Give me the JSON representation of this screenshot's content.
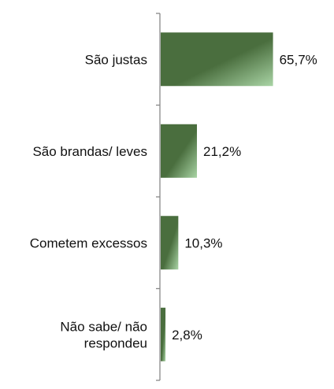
{
  "chart_data": {
    "type": "bar",
    "orientation": "horizontal",
    "categories": [
      "São justas",
      "São brandas/ leves",
      "Cometem excessos",
      "Não sabe/ não respondeu"
    ],
    "category_lines": [
      [
        "São justas"
      ],
      [
        "São brandas/ leves"
      ],
      [
        "Cometem excessos"
      ],
      [
        "Não sabe/ não",
        "respondeu"
      ]
    ],
    "values": [
      65.7,
      21.2,
      10.3,
      2.8
    ],
    "value_labels": [
      "65,7%",
      "21,2%",
      "10,3%",
      "2,8%"
    ],
    "xlim": [
      0,
      100
    ],
    "grid": false,
    "legend": "none",
    "title": "",
    "xlabel": "",
    "ylabel": ""
  },
  "colors": {
    "bar_dark": "#4a6e3e",
    "bar_light": "#a9d4a5",
    "axis": "#888888"
  }
}
